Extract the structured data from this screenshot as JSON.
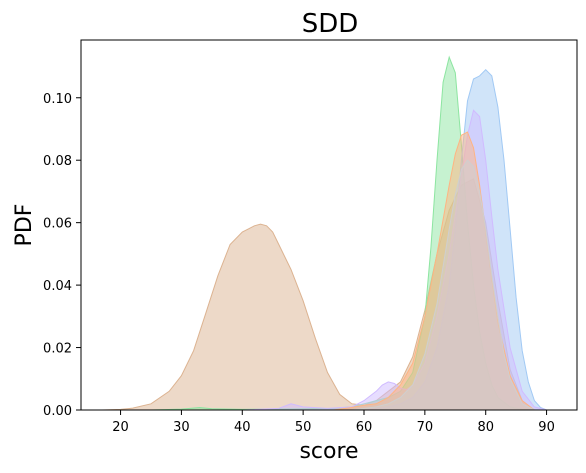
{
  "chart_data": {
    "type": "area",
    "title": "SDD",
    "xlabel": "score",
    "ylabel": "PDF",
    "xlim": [
      13.5,
      95
    ],
    "ylim": [
      0,
      0.1185
    ],
    "x_ticks": [
      20,
      30,
      40,
      50,
      60,
      70,
      80,
      90
    ],
    "y_ticks": [
      0.0,
      0.02,
      0.04,
      0.06,
      0.08,
      0.1
    ],
    "y_tick_labels": [
      "0.00",
      "0.02",
      "0.04",
      "0.06",
      "0.08",
      "0.10"
    ],
    "grid": false,
    "legend": "none",
    "series": [
      {
        "color": "#dcb391",
        "x": [
          17,
          20,
          22,
          25,
          28,
          30,
          32,
          34,
          36,
          38,
          40,
          41,
          42,
          43,
          44,
          45,
          46,
          48,
          50,
          52,
          54,
          56,
          58,
          60,
          62,
          64,
          66,
          68,
          70,
          72,
          74,
          76,
          78,
          80,
          82,
          84,
          86,
          88
        ],
        "y": [
          0.0,
          0.0002,
          0.0006,
          0.002,
          0.006,
          0.011,
          0.019,
          0.031,
          0.043,
          0.053,
          0.057,
          0.058,
          0.059,
          0.0595,
          0.059,
          0.057,
          0.053,
          0.045,
          0.035,
          0.023,
          0.012,
          0.005,
          0.002,
          0.0015,
          0.003,
          0.006,
          0.009,
          0.017,
          0.032,
          0.05,
          0.064,
          0.072,
          0.074,
          0.06,
          0.035,
          0.013,
          0.003,
          0.0
        ]
      },
      {
        "color": "#8de5a1",
        "x": [
          17,
          25,
          30,
          33,
          35,
          40,
          45,
          50,
          55,
          58,
          60,
          62,
          64,
          66,
          68,
          70,
          71,
          72,
          73,
          74,
          75,
          76,
          77,
          78,
          79,
          80,
          81,
          82,
          84,
          86,
          88
        ],
        "y": [
          0.0,
          0.0,
          0.0003,
          0.0008,
          0.0004,
          0.0002,
          0.0003,
          0.0004,
          0.0005,
          0.001,
          0.002,
          0.003,
          0.004,
          0.006,
          0.012,
          0.03,
          0.052,
          0.08,
          0.105,
          0.113,
          0.108,
          0.085,
          0.06,
          0.04,
          0.025,
          0.015,
          0.008,
          0.004,
          0.001,
          0.0002,
          0.0
        ]
      },
      {
        "color": "#a1c9f4",
        "x": [
          60,
          64,
          66,
          68,
          70,
          72,
          74,
          75,
          76,
          77,
          78,
          79,
          80,
          81,
          82,
          83,
          84,
          85,
          86,
          87,
          88,
          89,
          90
        ],
        "y": [
          0.0,
          0.001,
          0.002,
          0.004,
          0.009,
          0.02,
          0.04,
          0.058,
          0.08,
          0.099,
          0.106,
          0.107,
          0.109,
          0.107,
          0.097,
          0.08,
          0.058,
          0.036,
          0.019,
          0.009,
          0.003,
          0.0008,
          0.0
        ]
      },
      {
        "color": "#d0bbff",
        "x": [
          40,
          46,
          48,
          50,
          54,
          58,
          60,
          62,
          63,
          64,
          65,
          66,
          67,
          68,
          70,
          72,
          74,
          76,
          77,
          78,
          79,
          80,
          81,
          82,
          84,
          86,
          88,
          90
        ],
        "y": [
          0.0,
          0.0005,
          0.002,
          0.001,
          0.0005,
          0.001,
          0.003,
          0.006,
          0.008,
          0.009,
          0.0085,
          0.007,
          0.0065,
          0.008,
          0.015,
          0.03,
          0.05,
          0.075,
          0.088,
          0.096,
          0.094,
          0.08,
          0.062,
          0.045,
          0.02,
          0.006,
          0.001,
          0.0
        ]
      },
      {
        "color": "#ffb482",
        "x": [
          55,
          58,
          60,
          62,
          64,
          66,
          68,
          70,
          72,
          74,
          75,
          76,
          77,
          78,
          79,
          80,
          81,
          82,
          84,
          86,
          88
        ],
        "y": [
          0.0,
          0.0008,
          0.0015,
          0.002,
          0.004,
          0.008,
          0.015,
          0.03,
          0.05,
          0.072,
          0.082,
          0.088,
          0.089,
          0.084,
          0.072,
          0.057,
          0.042,
          0.028,
          0.011,
          0.003,
          0.0
        ]
      },
      {
        "color": "#cfcfcf",
        "x": [
          58,
          62,
          64,
          66,
          68,
          70,
          72,
          73,
          74,
          75,
          76,
          77,
          78,
          79,
          80,
          81,
          82,
          83,
          84,
          86,
          88
        ],
        "y": [
          0.0,
          0.001,
          0.002,
          0.004,
          0.008,
          0.018,
          0.034,
          0.046,
          0.058,
          0.069,
          0.077,
          0.08,
          0.078,
          0.07,
          0.058,
          0.043,
          0.03,
          0.018,
          0.01,
          0.002,
          0.0
        ]
      }
    ]
  }
}
